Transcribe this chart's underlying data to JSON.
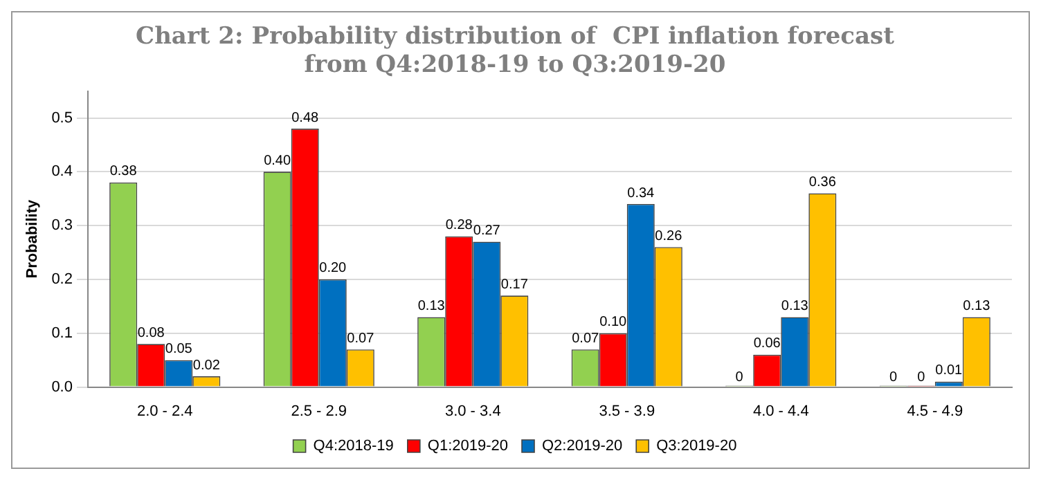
{
  "chart_data": {
    "type": "bar",
    "title": "Chart 2: Probability distribution of  CPI inflation forecast\nfrom Q4:2018-19 to Q3:2019-20",
    "ylabel": "Probability",
    "categories": [
      "2.0 - 2.4",
      "2.5 - 2.9",
      "3.0 - 3.4",
      "3.5 - 3.9",
      "4.0 - 4.4",
      "4.5 - 4.9"
    ],
    "series": [
      {
        "name": "Q4:2018-19",
        "color": "#92d050",
        "values": [
          0.38,
          0.4,
          0.13,
          0.07,
          0,
          0
        ],
        "value_labels": [
          "0.38",
          "0.40",
          "0.13",
          "0.07",
          "0",
          "0"
        ]
      },
      {
        "name": "Q1:2019-20",
        "color": "#ff0000",
        "values": [
          0.08,
          0.48,
          0.28,
          0.1,
          0.06,
          0
        ],
        "value_labels": [
          "0.08",
          "0.48",
          "0.28",
          "0.10",
          "0.06",
          "0"
        ]
      },
      {
        "name": "Q2:2019-20",
        "color": "#0070c0",
        "values": [
          0.05,
          0.2,
          0.27,
          0.34,
          0.13,
          0.01
        ],
        "value_labels": [
          "0.05",
          "0.20",
          "0.27",
          "0.34",
          "0.13",
          "0.01"
        ]
      },
      {
        "name": "Q3:2019-20",
        "color": "#ffc000",
        "values": [
          0.02,
          0.07,
          0.17,
          0.26,
          0.36,
          0.13
        ],
        "value_labels": [
          "0.02",
          "0.07",
          "0.17",
          "0.26",
          "0.36",
          "0.13"
        ]
      }
    ],
    "ylim": [
      0,
      0.55
    ],
    "yticks": [
      {
        "value": 0,
        "label": "0.0"
      },
      {
        "value": 0.1,
        "label": "0.1"
      },
      {
        "value": 0.2,
        "label": "0.2"
      },
      {
        "value": 0.3,
        "label": "0.3"
      },
      {
        "value": 0.4,
        "label": "0.4"
      },
      {
        "value": 0.5,
        "label": "0.5"
      }
    ],
    "grid": "y",
    "legend": "bottom"
  }
}
